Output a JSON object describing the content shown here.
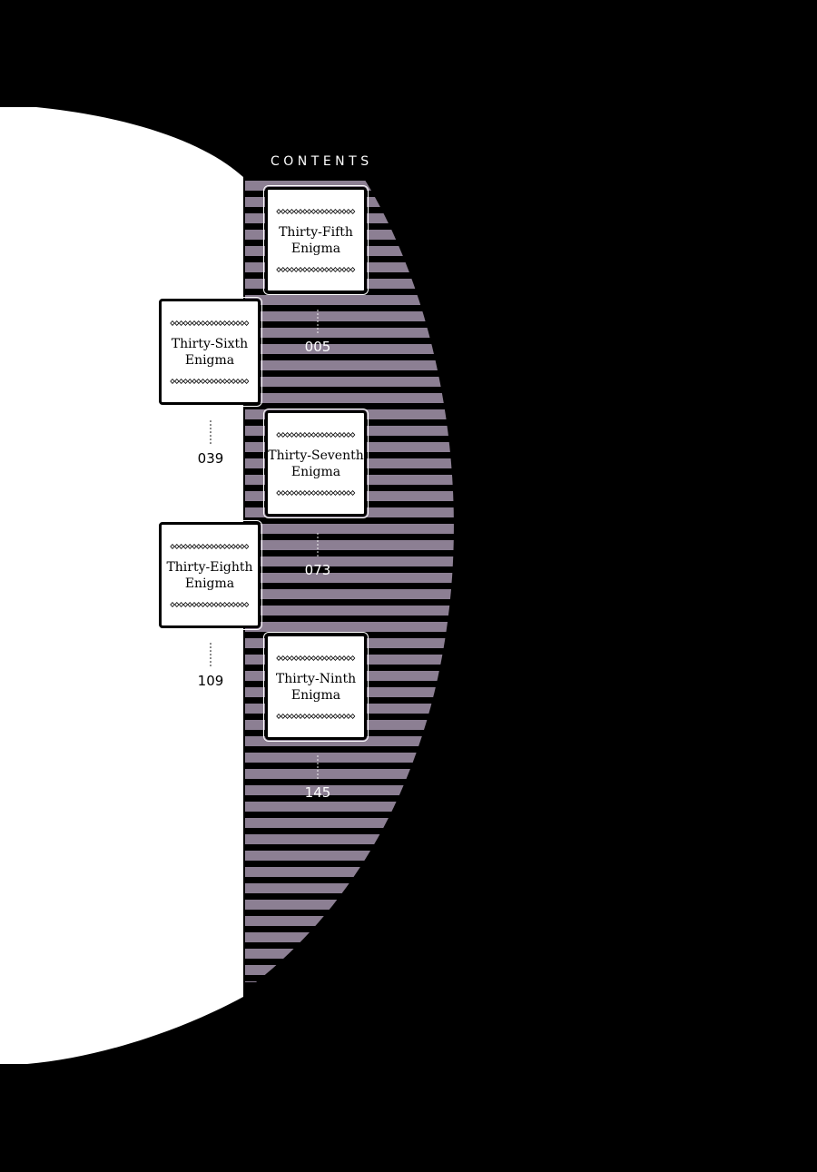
{
  "contents": {
    "heading": "CONTENTS",
    "chapters": [
      {
        "title_line1": "Thirty-Fifth",
        "title_line2": "Enigma",
        "page": "005"
      },
      {
        "title_line1": "Thirty-Sixth",
        "title_line2": "Enigma",
        "page": "039"
      },
      {
        "title_line1": "Thirty-Seventh",
        "title_line2": "Enigma",
        "page": "073"
      },
      {
        "title_line1": "Thirty-Eighth",
        "title_line2": "Enigma",
        "page": "109"
      },
      {
        "title_line1": "Thirty-Ninth",
        "title_line2": "Enigma",
        "page": "145"
      }
    ]
  },
  "colors": {
    "background": "#000000",
    "moon": "#ffffff",
    "stripe": "#8c7f93"
  }
}
